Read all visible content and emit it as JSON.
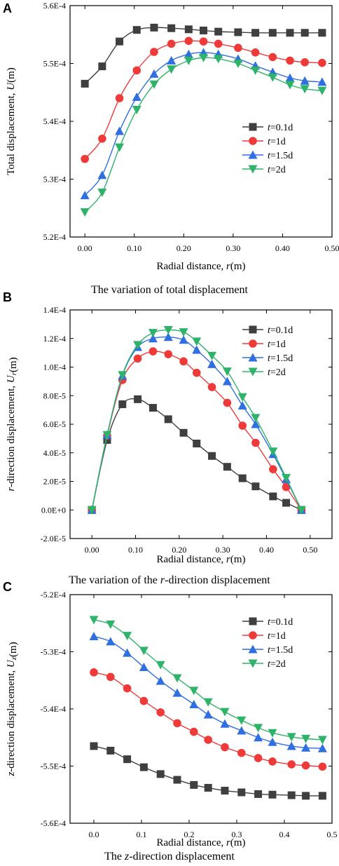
{
  "panel_letters": [
    "A",
    "B",
    "C"
  ],
  "captions": [
    {
      "parts": [
        {
          "text": "The variation of total displacement",
          "italic": false
        }
      ]
    },
    {
      "parts": [
        {
          "text": "The variation of the ",
          "italic": false
        },
        {
          "text": "r",
          "italic": true
        },
        {
          "text": "-direction displacement",
          "italic": false
        }
      ]
    },
    {
      "parts": [
        {
          "text": "The ",
          "italic": false
        },
        {
          "text": "z",
          "italic": true
        },
        {
          "text": "-direction displacement",
          "italic": false
        }
      ]
    }
  ],
  "series_colors": {
    "t=0.1d": "#3f3f3f",
    "t=1d": "#ef3a3a",
    "t=1.5d": "#2f6fe0",
    "t=2d": "#2fb36a"
  },
  "chart_data": [
    {
      "type": "line",
      "xlabel": {
        "parts": [
          {
            "text": "Radial distance, ",
            "italic": false
          },
          {
            "text": "r",
            "italic": true
          },
          {
            "text": "(m)",
            "italic": false
          }
        ]
      },
      "ylabel": {
        "parts": [
          {
            "text": "Total displacement, ",
            "italic": false
          },
          {
            "text": "U",
            "italic": true
          },
          {
            "text": "(m)",
            "italic": false
          }
        ]
      },
      "xlim": [
        -0.03,
        0.5
      ],
      "ylim": [
        0.00052,
        0.00056
      ],
      "xticks": [
        0,
        0.1,
        0.2,
        0.3,
        0.4,
        0.5
      ],
      "xtick_labels": [
        "0.00",
        "0.10",
        "0.20",
        "0.30",
        "0.40",
        "0.50"
      ],
      "yticks": [
        0.00052,
        0.00053,
        0.00054,
        0.00055,
        0.00056
      ],
      "ytick_labels": [
        "5.2E-4",
        "5.3E-4",
        "5.4E-4",
        "5.5E-4",
        "5.6E-4"
      ],
      "grid": false,
      "legend_position": "center-right",
      "x": [
        0,
        0.035,
        0.07,
        0.105,
        0.14,
        0.175,
        0.21,
        0.24,
        0.27,
        0.31,
        0.345,
        0.38,
        0.415,
        0.445,
        0.48
      ],
      "series": [
        {
          "name": "t=0.1d",
          "marker": "square",
          "values": [
            0.0005465,
            0.0005495,
            0.0005538,
            0.0005558,
            0.0005562,
            0.0005561,
            0.0005559,
            0.0005557,
            0.0005555,
            0.0005554,
            0.0005553,
            0.0005553,
            0.0005553,
            0.0005553,
            0.0005553
          ]
        },
        {
          "name": "t=1d",
          "marker": "circle",
          "values": [
            0.0005335,
            0.000537,
            0.000544,
            0.0005488,
            0.000552,
            0.0005534,
            0.0005539,
            0.0005538,
            0.0005534,
            0.0005527,
            0.0005519,
            0.0005511,
            0.0005505,
            0.0005502,
            0.0005501
          ]
        },
        {
          "name": "t=1.5d",
          "marker": "triangle-up",
          "values": [
            0.0005272,
            0.0005307,
            0.0005383,
            0.0005442,
            0.0005482,
            0.0005505,
            0.0005516,
            0.0005519,
            0.0005516,
            0.0005508,
            0.0005496,
            0.0005485,
            0.0005475,
            0.000547,
            0.0005468
          ]
        },
        {
          "name": "t=2d",
          "marker": "triangle-down",
          "values": [
            0.0005243,
            0.0005277,
            0.0005355,
            0.000542,
            0.0005464,
            0.000549,
            0.0005505,
            0.000551,
            0.0005508,
            0.00055,
            0.0005488,
            0.0005476,
            0.0005463,
            0.0005456,
            0.0005453
          ]
        }
      ]
    },
    {
      "type": "line",
      "xlabel": {
        "parts": [
          {
            "text": "Radial distance, ",
            "italic": false
          },
          {
            "text": "r",
            "italic": true
          },
          {
            "text": "(m)",
            "italic": false
          }
        ]
      },
      "ylabel": {
        "parts": [
          {
            "text": "r",
            "italic": true
          },
          {
            "text": "-direction displacement, ",
            "italic": false
          },
          {
            "text": "U",
            "italic": true
          },
          {
            "text": "r",
            "italic": true,
            "sub": true
          },
          {
            "text": "(m)",
            "italic": false
          }
        ]
      },
      "xlim": [
        -0.05,
        0.55
      ],
      "ylim": [
        -2e-05,
        0.00014
      ],
      "xticks": [
        0,
        0.1,
        0.2,
        0.3,
        0.4,
        0.5
      ],
      "xtick_labels": [
        "0.00",
        "0.10",
        "0.20",
        "0.30",
        "0.40",
        "0.50"
      ],
      "yticks": [
        -2e-05,
        0,
        2e-05,
        4e-05,
        6e-05,
        8e-05,
        0.0001,
        0.00012,
        0.00014
      ],
      "ytick_labels": [
        "-2.0E-5",
        "0.0E+0",
        "2.0E-5",
        "4.0E-5",
        "6.0E-5",
        "8.0E-5",
        "1.0E-4",
        "1.2E-4",
        "1.4E-4"
      ],
      "grid": false,
      "legend_position": "top-right",
      "x": [
        0,
        0.035,
        0.07,
        0.105,
        0.14,
        0.175,
        0.21,
        0.24,
        0.275,
        0.31,
        0.345,
        0.375,
        0.415,
        0.445,
        0.48
      ],
      "series": [
        {
          "name": "t=0.1d",
          "marker": "square",
          "values": [
            0,
            4.9e-05,
            7.4e-05,
            7.75e-05,
            7.15e-05,
            6.35e-05,
            5.4e-05,
            4.65e-05,
            3.78e-05,
            3.02e-05,
            2.22e-05,
            1.65e-05,
            9.5e-06,
            5e-06,
            0
          ]
        },
        {
          "name": "t=1d",
          "marker": "circle",
          "values": [
            0,
            5.2e-05,
            9.1e-05,
            0.000106,
            0.000111,
            0.000109,
            0.000104,
            9.6e-05,
            8.6e-05,
            7.5e-05,
            5.9e-05,
            4.7e-05,
            2.85e-05,
            1.6e-05,
            0
          ]
        },
        {
          "name": "t=1.5d",
          "marker": "triangle-up",
          "values": [
            0,
            5.25e-05,
            9.4e-05,
            0.000114,
            0.00012,
            0.000121,
            0.000119,
            0.000112,
            0.000102,
            9e-05,
            7.3e-05,
            6e-05,
            3.9e-05,
            2.15e-05,
            0
          ]
        },
        {
          "name": "t=2d",
          "marker": "triangle-down",
          "values": [
            0,
            5.25e-05,
            9.45e-05,
            0.0001155,
            0.000124,
            0.000126,
            0.0001245,
            0.000118,
            0.000108,
            9.7e-05,
            7.9e-05,
            6.45e-05,
            4.1e-05,
            2.25e-05,
            0
          ]
        }
      ]
    },
    {
      "type": "line",
      "xlabel": {
        "parts": [
          {
            "text": "Radial distance, ",
            "italic": false
          },
          {
            "text": "r",
            "italic": true
          },
          {
            "text": "(m)",
            "italic": false
          }
        ]
      },
      "ylabel": {
        "parts": [
          {
            "text": "z",
            "italic": true
          },
          {
            "text": "-direction displacement, ",
            "italic": false
          },
          {
            "text": "U",
            "italic": true
          },
          {
            "text": "z",
            "italic": true,
            "sub": true
          },
          {
            "text": "(m)",
            "italic": false
          }
        ]
      },
      "xlim": [
        -0.05,
        0.5
      ],
      "ylim": [
        -0.00056,
        -0.00052
      ],
      "xticks": [
        0,
        0.1,
        0.2,
        0.3,
        0.4,
        0.5
      ],
      "xtick_labels": [
        "0.0",
        "0.1",
        "0.2",
        "0.3",
        "0.4",
        "0.5"
      ],
      "yticks": [
        -0.00056,
        -0.00055,
        -0.00054,
        -0.00053,
        -0.00052
      ],
      "ytick_labels": [
        "-5.6E-4",
        "-5.5E-4",
        "-5.4E-4",
        "-5.3E-4",
        "-5.2E-4"
      ],
      "grid": false,
      "legend_position": "top-right",
      "x": [
        0,
        0.035,
        0.07,
        0.105,
        0.14,
        0.175,
        0.21,
        0.24,
        0.275,
        0.31,
        0.345,
        0.375,
        0.415,
        0.445,
        0.48
      ],
      "series": [
        {
          "name": "t=0.1d",
          "marker": "square",
          "values": [
            -0.0005465,
            -0.0005473,
            -0.0005488,
            -0.0005502,
            -0.0005514,
            -0.0005524,
            -0.0005533,
            -0.0005538,
            -0.0005543,
            -0.0005546,
            -0.0005549,
            -0.000555,
            -0.0005551,
            -0.0005552,
            -0.0005552
          ]
        },
        {
          "name": "t=1d",
          "marker": "circle",
          "values": [
            -0.0005336,
            -0.0005344,
            -0.0005364,
            -0.0005386,
            -0.0005406,
            -0.0005425,
            -0.000544,
            -0.0005454,
            -0.0005467,
            -0.0005477,
            -0.0005486,
            -0.0005492,
            -0.0005497,
            -0.0005499,
            -0.0005501
          ]
        },
        {
          "name": "t=1.5d",
          "marker": "triangle-up",
          "values": [
            -0.0005273,
            -0.0005282,
            -0.0005302,
            -0.0005327,
            -0.0005351,
            -0.0005372,
            -0.0005392,
            -0.000541,
            -0.0005426,
            -0.0005438,
            -0.000545,
            -0.0005458,
            -0.0005465,
            -0.0005468,
            -0.0005469
          ]
        },
        {
          "name": "t=2d",
          "marker": "triangle-down",
          "values": [
            -0.0005244,
            -0.0005252,
            -0.0005272,
            -0.0005298,
            -0.0005323,
            -0.0005346,
            -0.0005368,
            -0.0005388,
            -0.0005405,
            -0.000542,
            -0.0005433,
            -0.0005442,
            -0.0005449,
            -0.0005452,
            -0.0005454
          ]
        }
      ]
    }
  ]
}
